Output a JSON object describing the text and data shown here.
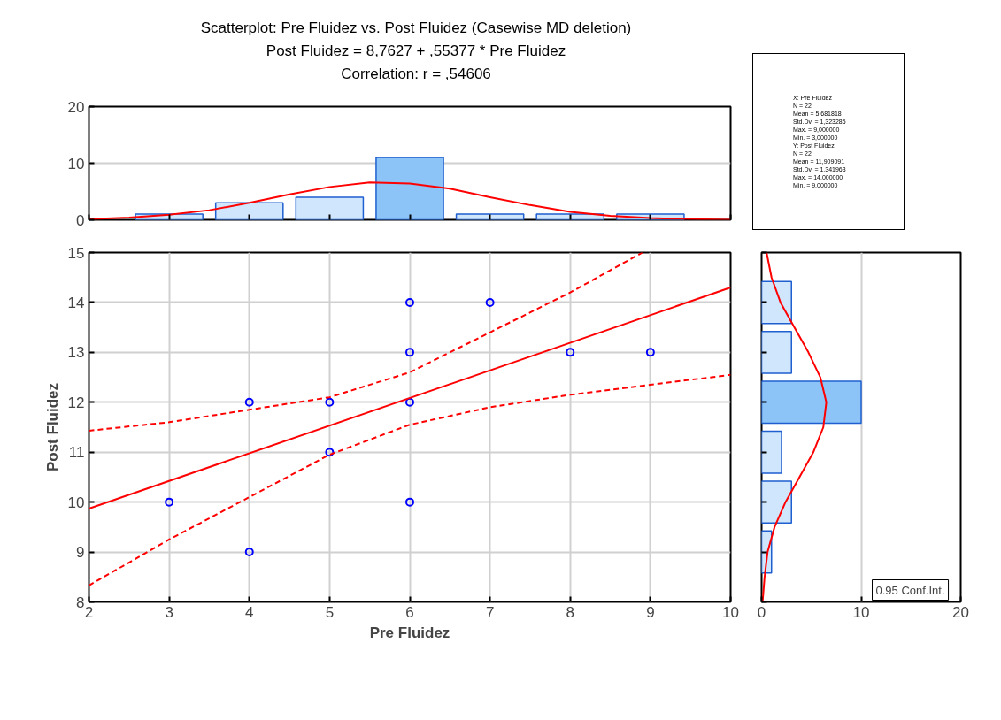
{
  "chart_data": [
    {
      "type": "histogram",
      "title": "Scatterplot: Pre Fluidez vs. Post Fluidez (Casewise MD deletion)",
      "subtitle": "Post Fluidez = 8,7627 + ,55377 * Pre Fluidez",
      "annotations": [
        "Correlation: r = ,54606"
      ],
      "bins": [
        2.5,
        3.5,
        4.5,
        5.5,
        6.5,
        7.5,
        8.5,
        9.5
      ],
      "values": [
        1,
        3,
        4,
        11,
        1,
        1,
        1
      ],
      "colors": [
        "#cfe6fc",
        "#cfe6fc",
        "#cfe6fc",
        "#8cc4f8",
        "#cfe6fc",
        "#cfe6fc",
        "#cfe6fc"
      ],
      "xlim": [
        2,
        10
      ],
      "xticks": [
        2,
        3,
        4,
        5,
        6,
        7,
        8,
        9,
        10
      ],
      "ylim": [
        0,
        20
      ],
      "yticks": [
        0,
        10,
        20
      ],
      "tick_labels": "y",
      "grid": "y",
      "series": [
        {
          "type": "line",
          "color": "#ff0000",
          "x": [
            2,
            2.5,
            3,
            3.5,
            4,
            4.5,
            5,
            5.5,
            6,
            6.5,
            7,
            7.5,
            8,
            8.5,
            9,
            9.5,
            10
          ],
          "values": [
            0.1,
            0.4,
            0.9,
            1.7,
            3,
            4.5,
            5.8,
            6.6,
            6.4,
            5.5,
            4,
            2.6,
            1.4,
            0.7,
            0.3,
            0.1,
            0
          ]
        }
      ]
    },
    {
      "type": "other",
      "annotations": [
        "X:  Pre Fluidez",
        "N = 22",
        "Mean = 5,681818",
        "Std.Dv. = 1,323285",
        "Max. = 9,000000",
        "Min. = 3,000000",
        "Y:  Post Fluidez",
        "N = 22",
        "Mean = 11,909091",
        "Std.Dv. = 1,341963",
        "Max. = 14,000000",
        "Min. = 9,000000"
      ]
    },
    {
      "type": "scatter",
      "xlabel": "Pre Fluidez",
      "ylabel": "Post Fluidez",
      "annotations": [
        "0.95 Conf.Int."
      ],
      "xlim": [
        2,
        10
      ],
      "xticks": [
        2,
        3,
        4,
        5,
        6,
        7,
        8,
        9,
        10
      ],
      "ylim": [
        8,
        15
      ],
      "yticks": [
        8,
        9,
        10,
        11,
        12,
        13,
        14,
        15
      ],
      "grid": true,
      "series": [
        {
          "type": "scatter",
          "color": "#0000ff",
          "marker": "circle",
          "x": [
            3,
            4,
            4,
            5,
            5,
            6,
            6,
            6,
            6,
            7,
            8,
            9
          ],
          "values": [
            10,
            12,
            9,
            12,
            11,
            14,
            13,
            12,
            10,
            14,
            13,
            13
          ]
        },
        {
          "type": "line",
          "color": "#ff0000",
          "line_style": "solid",
          "x": [
            2,
            10
          ],
          "values": [
            9.87,
            14.3
          ]
        },
        {
          "type": "line",
          "color": "#ff0000",
          "line_style": "dashed",
          "x": [
            2,
            3,
            4,
            5,
            6,
            7,
            8,
            8.9
          ],
          "values": [
            11.43,
            11.6,
            11.85,
            12.1,
            12.6,
            13.4,
            14.2,
            15
          ]
        },
        {
          "type": "line",
          "color": "#ff0000",
          "line_style": "dashed",
          "x": [
            2,
            3,
            4,
            5,
            6,
            7,
            8,
            9,
            10
          ],
          "values": [
            8.33,
            9.25,
            10.1,
            10.95,
            11.55,
            11.9,
            12.15,
            12.35,
            12.55
          ]
        }
      ]
    },
    {
      "type": "histogram",
      "orientation": "horizontal",
      "bins": [
        8.5,
        9.5,
        10.5,
        11.5,
        12.5,
        13.5,
        14.5
      ],
      "values": [
        1,
        3,
        2,
        10,
        3,
        3
      ],
      "colors": [
        "#cfe6fc",
        "#cfe6fc",
        "#cfe6fc",
        "#8cc4f8",
        "#cfe6fc",
        "#cfe6fc"
      ],
      "xlim": [
        0,
        20
      ],
      "xticks": [
        0,
        10,
        20
      ],
      "ylim": [
        8,
        15
      ],
      "yticks": [
        8,
        9,
        10,
        11,
        12,
        13,
        14,
        15
      ],
      "tick_labels": "x",
      "grid": "x",
      "series": [
        {
          "type": "line",
          "color": "#ff0000",
          "x": [
            8,
            8.5,
            9,
            9.5,
            10,
            10.5,
            11,
            11.5,
            12,
            12.5,
            13,
            13.5,
            14,
            14.5,
            15
          ],
          "values": [
            0.1,
            0.3,
            0.6,
            1.3,
            2.4,
            3.8,
            5.2,
            6.2,
            6.5,
            5.9,
            4.7,
            3.3,
            1.9,
            1,
            0.5
          ]
        }
      ]
    }
  ]
}
